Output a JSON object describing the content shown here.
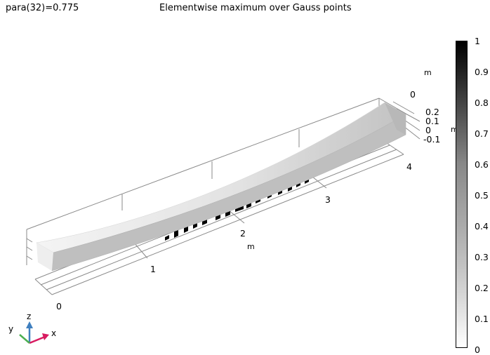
{
  "header": {
    "parameter": "para(32)=0.775",
    "title": "Elementwise maximum over Gauss points"
  },
  "axes": {
    "x_ticks": [
      "0",
      "1",
      "2",
      "3",
      "4"
    ],
    "x_unit": "m",
    "z_ticks": [
      "0.2",
      "0.1",
      "0",
      "-0.1"
    ],
    "z_unit": "m",
    "y_ticks": [
      "0"
    ],
    "y_unit": "m"
  },
  "colorbar": {
    "labels": [
      "1",
      "0.9",
      "0.8",
      "0.7",
      "0.6",
      "0.5",
      "0.4",
      "0.3",
      "0.2",
      "0.1",
      "0"
    ],
    "range": [
      0,
      1
    ],
    "colormap": "grayscale (white = 0, black = 1)"
  },
  "triad": {
    "x": "x",
    "y": "y",
    "z": "z",
    "x_color": "#d81b60",
    "y_color": "#4caf50",
    "z_color": "#3f7fbf"
  }
}
